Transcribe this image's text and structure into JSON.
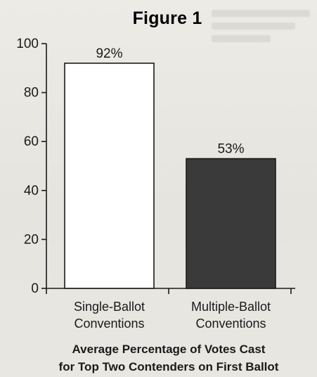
{
  "chart_data": {
    "type": "bar",
    "title": "Figure 1",
    "categories": [
      [
        "Single-Ballot",
        "Conventions"
      ],
      [
        "Multiple-Ballot",
        "Conventions"
      ]
    ],
    "values": [
      92,
      53
    ],
    "data_labels": [
      "92%",
      "53%"
    ],
    "bar_colors": [
      "#ffffff",
      "#3a3a3a"
    ],
    "ylim": [
      0,
      100
    ],
    "yticks": [
      0,
      20,
      40,
      60,
      80,
      100
    ],
    "ytick_labels": [
      "0",
      "20",
      "40",
      "60",
      "80",
      "100"
    ],
    "caption": [
      "Average Percentage of Votes Cast",
      "for Top Two Contenders on First Ballot"
    ],
    "grid": false
  }
}
